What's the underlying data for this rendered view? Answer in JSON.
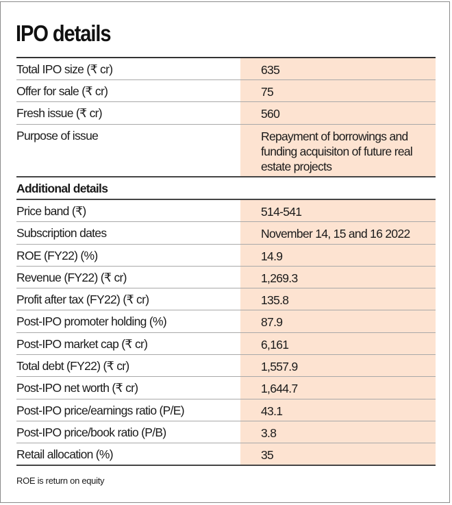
{
  "title": "IPO details",
  "colors": {
    "value_bg": "#fde3d1",
    "rule": "#444444"
  },
  "main_rows": [
    {
      "label": "Total IPO size (₹ cr)",
      "value": "635"
    },
    {
      "label": "Offer for sale (₹ cr)",
      "value": "75"
    },
    {
      "label": "Fresh issue (₹ cr)",
      "value": "560"
    },
    {
      "label": "Purpose of issue",
      "value": "Repayment of borrowings and funding acquisiton of future real estate projects"
    }
  ],
  "section_heading": "Additional details",
  "additional_rows": [
    {
      "label": "Price band (₹)",
      "value": "514-541"
    },
    {
      "label": "Subscription dates",
      "value": "November 14, 15 and 16 2022"
    },
    {
      "label": "ROE (FY22) (%)",
      "value": "14.9"
    },
    {
      "label": "Revenue (FY22) (₹ cr)",
      "value": "1,269.3"
    },
    {
      "label": "Profit after tax (FY22) (₹ cr)",
      "value": "135.8"
    },
    {
      "label": "Post-IPO promoter holding (%)",
      "value": "87.9"
    },
    {
      "label": "Post-IPO market cap (₹ cr)",
      "value": "6,161"
    },
    {
      "label": "Total debt (FY22) (₹ cr)",
      "value": "1,557.9"
    },
    {
      "label": "Post-IPO net worth (₹ cr)",
      "value": "1,644.7"
    },
    {
      "label": "Post-IPO price/earnings ratio (P/E)",
      "value": "43.1"
    },
    {
      "label": "Post-IPO price/book ratio (P/B)",
      "value": "3.8"
    },
    {
      "label": "Retail allocation (%)",
      "value": "35"
    }
  ],
  "footnote": "ROE is return on equity"
}
